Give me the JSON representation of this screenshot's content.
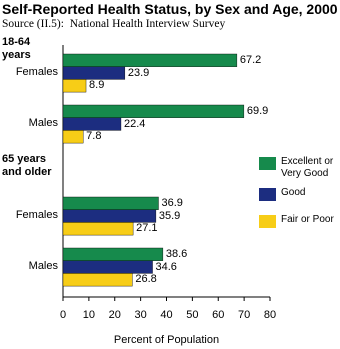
{
  "chart_data": {
    "type": "bar",
    "orientation": "horizontal",
    "title": "Self-Reported Health Status, by Sex and Age, 2000",
    "subtitle": "Source (II.5):  National Health Interview Survey",
    "groups": [
      {
        "name": "18-64 years",
        "categories": [
          "Females",
          "Males"
        ]
      },
      {
        "name": "65 years and older",
        "categories": [
          "Females",
          "Males"
        ]
      }
    ],
    "series": [
      {
        "name": "Excellent or Very Good",
        "color": "#168a4c",
        "values": [
          67.2,
          69.9,
          36.9,
          38.6
        ]
      },
      {
        "name": "Good",
        "color": "#1c2d80",
        "values": [
          23.9,
          22.4,
          35.9,
          34.6
        ]
      },
      {
        "name": "Fair or Poor",
        "color": "#f7cd17",
        "values": [
          8.9,
          7.8,
          27.1,
          26.8
        ]
      }
    ],
    "xlabel": "Percent of Population",
    "xlim": [
      0,
      80
    ],
    "xticks": [
      0,
      10,
      20,
      30,
      40,
      50,
      60,
      70,
      80
    ],
    "legend": "right"
  }
}
